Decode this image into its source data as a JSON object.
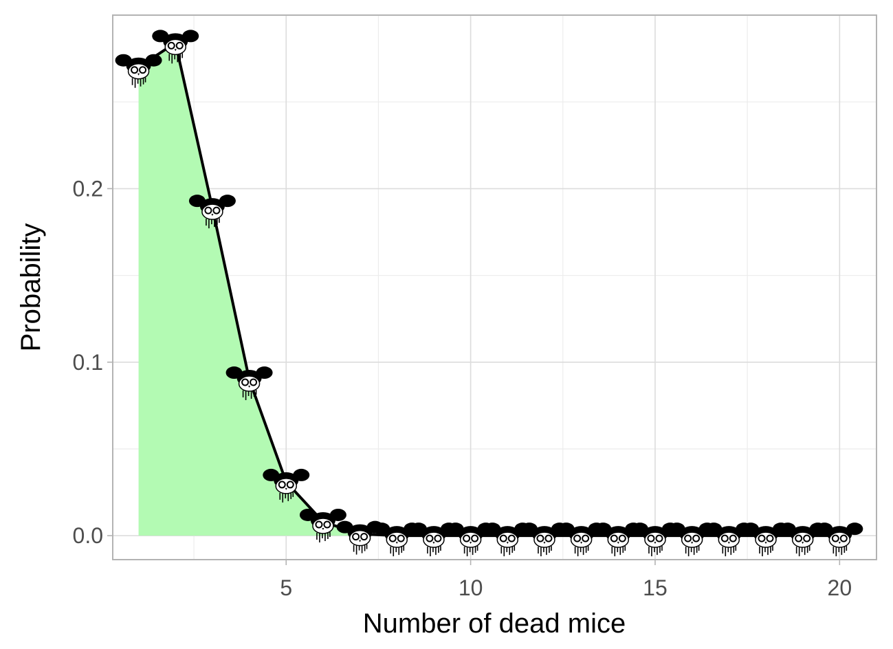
{
  "chart_data": {
    "type": "area",
    "title": "",
    "xlabel": "Number of dead mice",
    "ylabel": "Probability",
    "xlim": [
      0.3,
      21.0
    ],
    "ylim": [
      -0.0138,
      0.3
    ],
    "x_ticks": [
      5,
      10,
      15,
      20
    ],
    "x_tick_labels": [
      "5",
      "10",
      "15",
      "20"
    ],
    "y_ticks": [
      0.0,
      0.1,
      0.2
    ],
    "y_tick_labels": [
      "0.0",
      "0.1",
      "0.2"
    ],
    "grid": true,
    "legend": "none",
    "point_marker": "mouse-skull",
    "series": [
      {
        "x": [
          1,
          2,
          3,
          4,
          5,
          6,
          7,
          8,
          9,
          10,
          11,
          12,
          13,
          14,
          15,
          16,
          17,
          18,
          19,
          20
        ],
        "values": [
          0.27,
          0.284,
          0.189,
          0.09,
          0.031,
          0.008,
          0.001,
          0,
          0,
          0,
          0,
          0,
          0,
          0,
          0,
          0,
          0,
          0,
          0,
          0
        ]
      }
    ],
    "colors": {
      "area_fill": "#b3fab3",
      "line": "#000000",
      "line_accent": "#2e7d32",
      "grid_major": "#dcdcdc",
      "grid_minor": "#ececec",
      "panel_border": "#b3b3b3",
      "tick_text": "#4d4d4d"
    }
  }
}
